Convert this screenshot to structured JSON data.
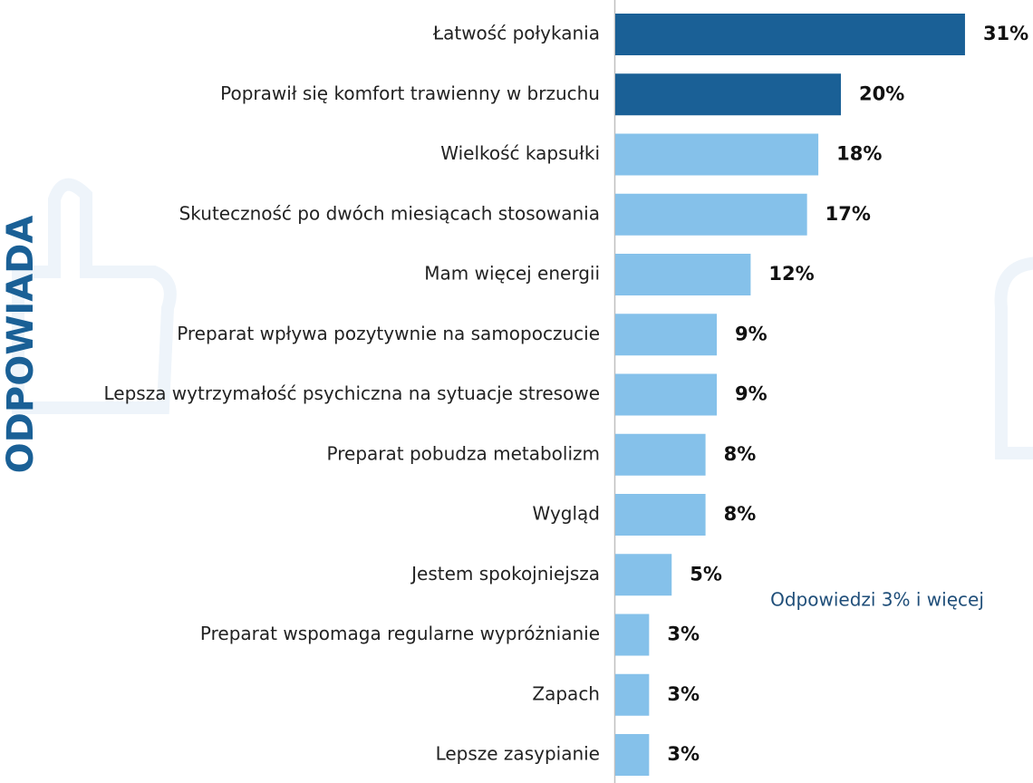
{
  "chart_data": {
    "type": "bar",
    "orientation": "horizontal",
    "side_label": "ODPOWIADA",
    "annotation": "Odpowiedzi 3% i więcej",
    "categories": [
      "Łatwość połykania",
      "Poprawił się komfort trawienny w brzuchu",
      "Wielkość kapsułki",
      "Skuteczność po dwóch miesiącach stosowania",
      "Mam więcej energii",
      "Preparat wpływa pozytywnie na samopoczucie",
      "Lepsza wytrzymałość psychiczna na sytuacje stresowe",
      "Preparat pobudza metabolizm",
      "Wygląd",
      "Jestem spokojniejsza",
      "Preparat wspomaga regularne wypróżnianie",
      "Zapach",
      "Lepsze zasypianie"
    ],
    "values": [
      31,
      20,
      18,
      17,
      12,
      9,
      9,
      8,
      8,
      5,
      3,
      3,
      3
    ],
    "value_labels": [
      "31%",
      "20%",
      "18%",
      "17%",
      "12%",
      "9%",
      "9%",
      "8%",
      "8%",
      "5%",
      "3%",
      "3%",
      "3%"
    ],
    "colors": [
      "#1a6096",
      "#1a6096",
      "#85c1ea",
      "#85c1ea",
      "#85c1ea",
      "#85c1ea",
      "#85c1ea",
      "#85c1ea",
      "#85c1ea",
      "#85c1ea",
      "#85c1ea",
      "#85c1ea",
      "#85c1ea"
    ]
  }
}
